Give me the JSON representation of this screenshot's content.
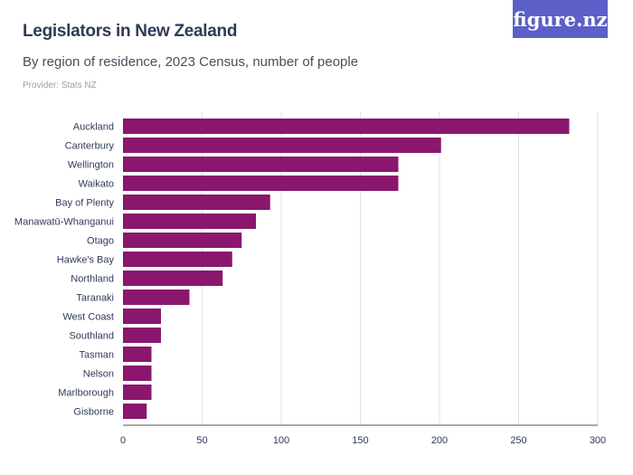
{
  "header": {
    "title": "Legislators in New Zealand",
    "subtitle": "By region of residence, 2023 Census, number of people",
    "provider": "Provider: Stats NZ",
    "logo": "figure.nz"
  },
  "chart_data": {
    "type": "bar",
    "orientation": "horizontal",
    "categories": [
      "Auckland",
      "Canterbury",
      "Wellington",
      "Waikato",
      "Bay of Plenty",
      "Manawatū-Whanganui",
      "Otago",
      "Hawke's Bay",
      "Northland",
      "Taranaki",
      "West Coast",
      "Southland",
      "Tasman",
      "Nelson",
      "Marlborough",
      "Gisborne"
    ],
    "values": [
      282,
      201,
      174,
      174,
      93,
      84,
      75,
      69,
      63,
      42,
      24,
      24,
      18,
      18,
      18,
      15
    ],
    "xlim": [
      0,
      300
    ],
    "xticks": [
      0,
      50,
      100,
      150,
      200,
      250,
      300
    ],
    "grid": true,
    "bar_color": "#8a166e"
  }
}
